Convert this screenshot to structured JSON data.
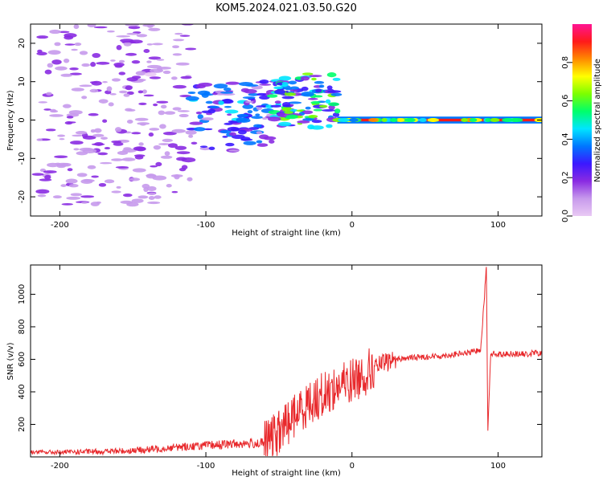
{
  "title": "KOM5.2024.021.03.50.G20",
  "chart_data": [
    {
      "type": "heatmap",
      "xlabel": "Height of straight line (km)",
      "ylabel": "Frequency (Hz)",
      "xlim": [
        -220,
        130
      ],
      "ylim": [
        -25,
        25
      ],
      "x_ticks": [
        -200,
        -100,
        0,
        100
      ],
      "y_ticks": [
        -20,
        -10,
        0,
        10,
        20
      ],
      "colorbar": {
        "label": "Normalized spectral amplitude",
        "range": [
          0,
          1
        ],
        "ticks": [
          "0.0",
          "0.2",
          "0.4",
          "0.6",
          "0.8"
        ],
        "colors": [
          "#e9c9f4",
          "#c79aec",
          "#8a2be2",
          "#3b18ff",
          "#0077ff",
          "#00e5ff",
          "#00ff6a",
          "#7cff00",
          "#ffff00",
          "#ff8a00",
          "#ff1a1a",
          "#ff1493"
        ]
      },
      "features": [
        {
          "x_from": -215,
          "x_to": -110,
          "freq_from": -22,
          "freq_to": 25,
          "level": 0.15,
          "description_color": "purple speckle"
        },
        {
          "x_from": -110,
          "x_to": -55,
          "freq_from": -8,
          "freq_to": 10,
          "level": 0.35
        },
        {
          "x_from": -55,
          "x_to": -10,
          "freq_from": -2,
          "freq_to": 12,
          "level": 0.5
        },
        {
          "x_from": -10,
          "x_to": 130,
          "freq_from": -1,
          "freq_to": 1,
          "level": 0.85
        }
      ],
      "grid": false
    },
    {
      "type": "line",
      "xlabel": "Height of straight line (km)",
      "ylabel": "SNR (v/v)",
      "xlim": [
        -220,
        130
      ],
      "ylim": [
        0,
        1180
      ],
      "x_ticks": [
        -200,
        -100,
        0,
        100
      ],
      "y_ticks": [
        200,
        400,
        600,
        800,
        1000
      ],
      "series": [
        {
          "color": "#e8282b",
          "values": [
            [
              -220,
              30
            ],
            [
              -200,
              28
            ],
            [
              -180,
              32
            ],
            [
              -160,
              35
            ],
            [
              -140,
              45
            ],
            [
              -120,
              60
            ],
            [
              -100,
              70
            ],
            [
              -80,
              80
            ],
            [
              -60,
              85
            ],
            [
              -50,
              150
            ],
            [
              -40,
              250
            ],
            [
              -30,
              330
            ],
            [
              -20,
              380
            ],
            [
              -10,
              430
            ],
            [
              0,
              470
            ],
            [
              10,
              520
            ],
            [
              20,
              570
            ],
            [
              30,
              600
            ],
            [
              40,
              610
            ],
            [
              50,
              615
            ],
            [
              60,
              620
            ],
            [
              70,
              630
            ],
            [
              80,
              640
            ],
            [
              88,
              660
            ],
            [
              90,
              900
            ],
            [
              92,
              1170
            ],
            [
              93,
              170
            ],
            [
              95,
              640
            ],
            [
              100,
              630
            ],
            [
              110,
              635
            ],
            [
              120,
              630
            ],
            [
              125,
              640
            ],
            [
              130,
              635
            ]
          ]
        }
      ],
      "grid": false
    }
  ]
}
